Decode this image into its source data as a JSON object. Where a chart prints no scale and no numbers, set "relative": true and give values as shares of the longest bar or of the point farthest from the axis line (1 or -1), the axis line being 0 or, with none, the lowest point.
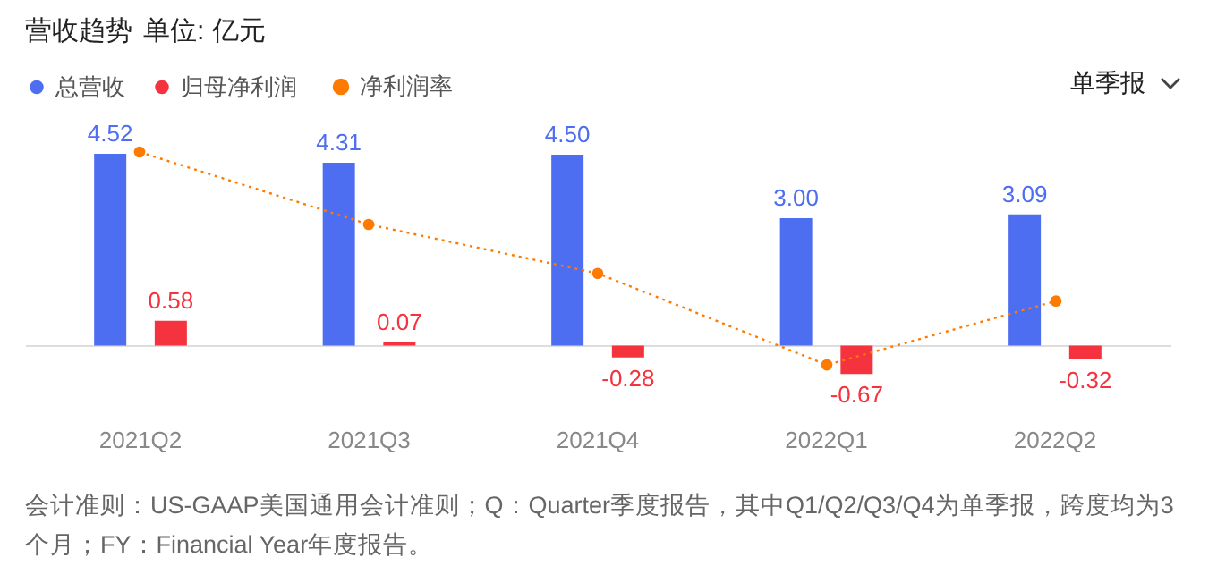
{
  "chart_data": [
    {
      "type": "bar",
      "title": "营收趋势",
      "subtitle": "单位: 亿元",
      "categories": [
        "2021Q2",
        "2021Q3",
        "2021Q4",
        "2022Q1",
        "2022Q2"
      ],
      "series": [
        {
          "name": "总营收",
          "color": "#4e6ef2",
          "values": [
            4.52,
            4.31,
            4.5,
            3.0,
            3.09
          ],
          "value_labels": [
            "4.52",
            "4.31",
            "4.50",
            "3.00",
            "3.09"
          ]
        },
        {
          "name": "归母净利润",
          "color": "#f5333f",
          "values": [
            0.58,
            0.07,
            -0.28,
            -0.67,
            -0.32
          ],
          "value_labels": [
            "0.58",
            "0.07",
            "-0.28",
            "-0.67",
            "-0.32"
          ]
        }
      ],
      "tick_labels": "x",
      "legend": "top left",
      "annotations": [
        "单季报",
        "会计准则：US-GAAP美国通用会计准则；Q：Quarter季度报告，其中Q1/Q2/Q3/Q4为单季报，跨度均为3个月；FY：Financial Year年度报告。"
      ]
    },
    {
      "type": "line",
      "relative": true,
      "categories": [
        null,
        null,
        null,
        null,
        null
      ],
      "series": [
        {
          "name": "净利润率",
          "color": "#ff7a00",
          "values": [
            1,
            0.66,
            0.43,
            0,
            0.3
          ]
        }
      ],
      "marker": "circle",
      "line_style": "dotted",
      "tick_labels": false,
      "legend": "top left"
    }
  ]
}
